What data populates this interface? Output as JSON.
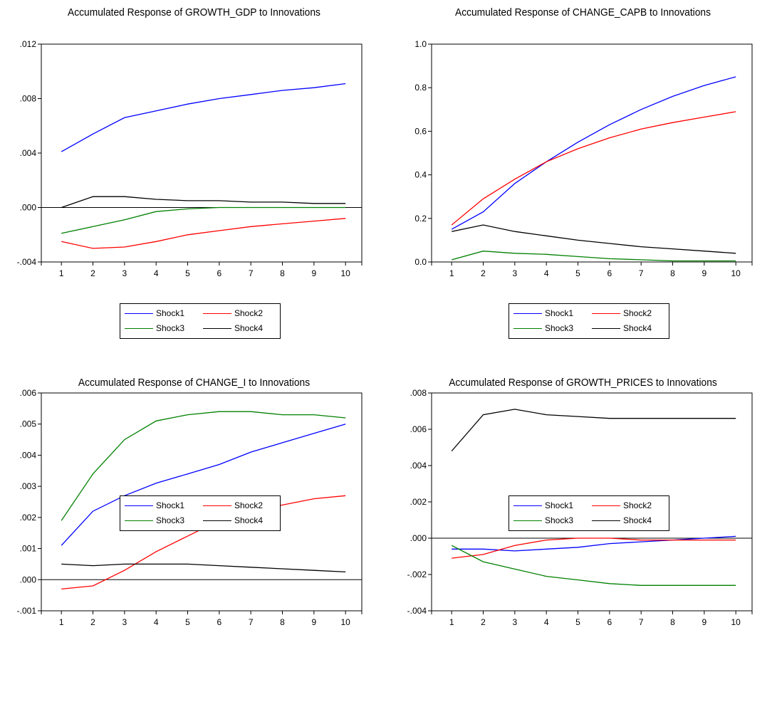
{
  "colors": {
    "Shock1": "#0000ff",
    "Shock2": "#ff0000",
    "Shock3": "#008000",
    "Shock4": "#000000"
  },
  "chart_data": [
    {
      "type": "line",
      "title": "Accumulated Response of GROWTH_GDP to Innovations",
      "x": [
        1,
        2,
        3,
        4,
        5,
        6,
        7,
        8,
        9,
        10
      ],
      "ylim": [
        -0.004,
        0.012
      ],
      "yticks": [
        -0.004,
        0.0,
        0.004,
        0.008,
        0.012
      ],
      "ytick_labels": [
        "-.004",
        ".000",
        ".004",
        ".008",
        ".012"
      ],
      "legend_position": "bottom",
      "series": [
        {
          "name": "Shock1",
          "values": [
            0.0041,
            0.0054,
            0.0066,
            0.0071,
            0.0076,
            0.008,
            0.0083,
            0.0086,
            0.0088,
            0.0091
          ]
        },
        {
          "name": "Shock2",
          "values": [
            -0.0025,
            -0.003,
            -0.0029,
            -0.0025,
            -0.002,
            -0.0017,
            -0.0014,
            -0.0012,
            -0.001,
            -0.0008
          ]
        },
        {
          "name": "Shock3",
          "values": [
            -0.0019,
            -0.0014,
            -0.0009,
            -0.0003,
            -0.0001,
            0.0,
            0.0,
            0.0,
            0.0,
            0.0
          ]
        },
        {
          "name": "Shock4",
          "values": [
            0.0,
            0.0008,
            0.0008,
            0.0006,
            0.0005,
            0.0005,
            0.0004,
            0.0004,
            0.0003,
            0.0003
          ]
        }
      ]
    },
    {
      "type": "line",
      "title": "Accumulated Response of CHANGE_CAPB to Innovations",
      "x": [
        1,
        2,
        3,
        4,
        5,
        6,
        7,
        8,
        9,
        10
      ],
      "ylim": [
        0.0,
        1.0
      ],
      "yticks": [
        0.0,
        0.2,
        0.4,
        0.6,
        0.8,
        1.0
      ],
      "ytick_labels": [
        "0.0",
        "0.2",
        "0.4",
        "0.6",
        "0.8",
        "1.0"
      ],
      "legend_position": "bottom",
      "series": [
        {
          "name": "Shock1",
          "values": [
            0.15,
            0.23,
            0.36,
            0.46,
            0.55,
            0.63,
            0.7,
            0.76,
            0.81,
            0.85
          ]
        },
        {
          "name": "Shock2",
          "values": [
            0.17,
            0.29,
            0.38,
            0.46,
            0.52,
            0.57,
            0.61,
            0.64,
            0.665,
            0.69
          ]
        },
        {
          "name": "Shock3",
          "values": [
            0.01,
            0.05,
            0.04,
            0.035,
            0.025,
            0.015,
            0.01,
            0.005,
            0.005,
            0.005
          ]
        },
        {
          "name": "Shock4",
          "values": [
            0.14,
            0.17,
            0.14,
            0.12,
            0.1,
            0.085,
            0.07,
            0.06,
            0.05,
            0.04
          ]
        }
      ]
    },
    {
      "type": "line",
      "title": "Accumulated Response of CHANGE_I to Innovations",
      "x": [
        1,
        2,
        3,
        4,
        5,
        6,
        7,
        8,
        9,
        10
      ],
      "ylim": [
        -0.001,
        0.006
      ],
      "yticks": [
        -0.001,
        0.0,
        0.001,
        0.002,
        0.003,
        0.004,
        0.005,
        0.006
      ],
      "ytick_labels": [
        "-.001",
        ".000",
        ".001",
        ".002",
        ".003",
        ".004",
        ".005",
        ".006"
      ],
      "legend_position": "bottom",
      "series": [
        {
          "name": "Shock1",
          "values": [
            0.0011,
            0.0022,
            0.0027,
            0.0031,
            0.0034,
            0.0037,
            0.0041,
            0.0044,
            0.0047,
            0.005
          ]
        },
        {
          "name": "Shock2",
          "values": [
            -0.0003,
            -0.0002,
            0.0003,
            0.0009,
            0.0014,
            0.0019,
            0.0022,
            0.0024,
            0.0026,
            0.0027
          ]
        },
        {
          "name": "Shock3",
          "values": [
            0.0019,
            0.0034,
            0.0045,
            0.0051,
            0.0053,
            0.0054,
            0.0054,
            0.0053,
            0.0053,
            0.0052
          ]
        },
        {
          "name": "Shock4",
          "values": [
            0.0005,
            0.00045,
            0.0005,
            0.0005,
            0.0005,
            0.00045,
            0.0004,
            0.00035,
            0.0003,
            0.00025
          ]
        }
      ]
    },
    {
      "type": "line",
      "title": "Accumulated Response of GROWTH_PRICES to Innovations",
      "x": [
        1,
        2,
        3,
        4,
        5,
        6,
        7,
        8,
        9,
        10
      ],
      "ylim": [
        -0.004,
        0.008
      ],
      "yticks": [
        -0.004,
        -0.002,
        0.0,
        0.002,
        0.004,
        0.006,
        0.008
      ],
      "ytick_labels": [
        "-.004",
        "-.002",
        ".000",
        ".002",
        ".004",
        ".006",
        ".008"
      ],
      "legend_position": "bottom",
      "series": [
        {
          "name": "Shock1",
          "values": [
            -0.0006,
            -0.0006,
            -0.0007,
            -0.0006,
            -0.0005,
            -0.0003,
            -0.0002,
            -0.0001,
            0.0,
            0.0001
          ]
        },
        {
          "name": "Shock2",
          "values": [
            -0.0011,
            -0.0009,
            -0.0004,
            -0.0001,
            0.0,
            0.0,
            -0.0001,
            -0.0001,
            -0.0001,
            -0.0001
          ]
        },
        {
          "name": "Shock3",
          "values": [
            -0.0004,
            -0.0013,
            -0.0017,
            -0.0021,
            -0.0023,
            -0.0025,
            -0.0026,
            -0.0026,
            -0.0026,
            -0.0026
          ]
        },
        {
          "name": "Shock4",
          "values": [
            0.0048,
            0.0068,
            0.0071,
            0.0068,
            0.0067,
            0.0066,
            0.0066,
            0.0066,
            0.0066,
            0.0066
          ]
        }
      ]
    }
  ]
}
